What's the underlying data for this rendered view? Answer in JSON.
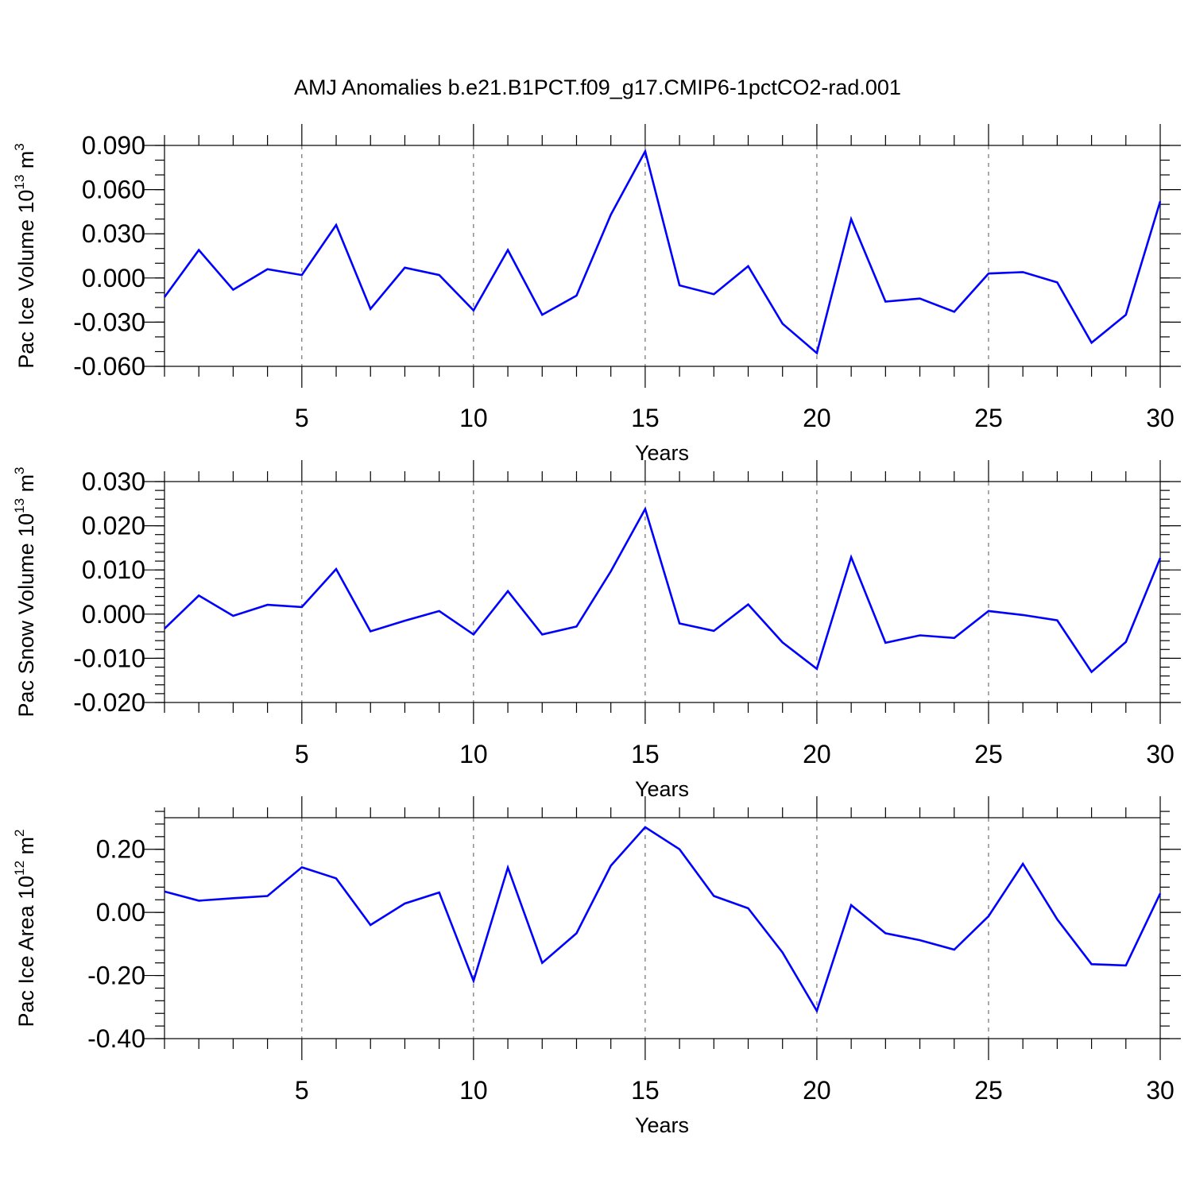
{
  "title": "AMJ Anomalies b.e21.B1PCT.f09_g17.CMIP6-1pctCO2-rad.001",
  "colors": {
    "line": "#0000ff",
    "axis": "#000000",
    "grid": "#555555"
  },
  "chart_data": [
    {
      "type": "line",
      "ylabel": {
        "base": "Pac Ice Volume 10",
        "sup": "13",
        "unit": " m",
        "unit_sup": "3"
      },
      "xlabel": "Years",
      "xlim": [
        1,
        30
      ],
      "ylim": [
        -0.06,
        0.09
      ],
      "x_ticks": [
        5,
        10,
        15,
        20,
        25,
        30
      ],
      "x_tick_labels": [
        "5",
        "10",
        "15",
        "20",
        "25",
        "30"
      ],
      "y_ticks": [
        -0.06,
        -0.03,
        0.0,
        0.03,
        0.06,
        0.09
      ],
      "y_tick_labels": [
        "-0.060",
        "-0.030",
        "0.000",
        "0.030",
        "0.060",
        "0.090"
      ],
      "y_minor_step": 0.01,
      "grid": "vertical dashed at major x ticks",
      "x": [
        1,
        2,
        3,
        4,
        5,
        6,
        7,
        8,
        9,
        10,
        11,
        12,
        13,
        14,
        15,
        16,
        17,
        18,
        19,
        20,
        21,
        22,
        23,
        24,
        25,
        26,
        27,
        28,
        29,
        30
      ],
      "series": [
        {
          "values": [
            -0.013,
            0.019,
            -0.008,
            0.006,
            0.002,
            0.036,
            -0.021,
            0.007,
            0.002,
            -0.022,
            0.019,
            -0.025,
            -0.012,
            0.043,
            0.086,
            -0.005,
            -0.011,
            0.008,
            -0.031,
            -0.051,
            0.04,
            -0.016,
            -0.014,
            -0.023,
            0.003,
            0.004,
            -0.003,
            -0.044,
            -0.025,
            0.052
          ]
        }
      ]
    },
    {
      "type": "line",
      "ylabel": {
        "base": "Pac Snow Volume 10",
        "sup": "13",
        "unit": " m",
        "unit_sup": "3"
      },
      "xlabel": "Years",
      "xlim": [
        1,
        30
      ],
      "ylim": [
        -0.02,
        0.03
      ],
      "x_ticks": [
        5,
        10,
        15,
        20,
        25,
        30
      ],
      "x_tick_labels": [
        "5",
        "10",
        "15",
        "20",
        "25",
        "30"
      ],
      "y_ticks": [
        -0.02,
        -0.01,
        0.0,
        0.01,
        0.02,
        0.03
      ],
      "y_tick_labels": [
        "-0.020",
        "-0.010",
        "0.000",
        "0.010",
        "0.020",
        "0.030"
      ],
      "y_minor_step": 0.002,
      "grid": "vertical dashed at major x ticks",
      "x": [
        1,
        2,
        3,
        4,
        5,
        6,
        7,
        8,
        9,
        10,
        11,
        12,
        13,
        14,
        15,
        16,
        17,
        18,
        19,
        20,
        21,
        22,
        23,
        24,
        25,
        26,
        27,
        28,
        29,
        30
      ],
      "series": [
        {
          "values": [
            -0.0033,
            0.0042,
            -0.0004,
            0.0021,
            0.0016,
            0.0102,
            -0.0039,
            -0.0015,
            0.0007,
            -0.0046,
            0.0052,
            -0.0046,
            -0.0028,
            0.0097,
            0.0238,
            -0.0021,
            -0.0038,
            0.0022,
            -0.0064,
            -0.0124,
            0.0129,
            -0.0065,
            -0.0048,
            -0.0054,
            0.0007,
            -0.0002,
            -0.0014,
            -0.0131,
            -0.0063,
            0.0127
          ]
        }
      ]
    },
    {
      "type": "line",
      "ylabel": {
        "base": "Pac Ice Area 10",
        "sup": "12",
        "unit": " m",
        "unit_sup": "2"
      },
      "xlabel": "Years",
      "xlim": [
        1,
        30
      ],
      "ylim": [
        -0.4,
        0.3
      ],
      "x_ticks": [
        5,
        10,
        15,
        20,
        25,
        30
      ],
      "x_tick_labels": [
        "5",
        "10",
        "15",
        "20",
        "25",
        "30"
      ],
      "y_ticks": [
        -0.4,
        -0.2,
        0.0,
        0.2
      ],
      "y_tick_labels": [
        "-0.40",
        "-0.20",
        "0.00",
        "0.20"
      ],
      "y_minor_step": 0.04,
      "grid": "vertical dashed at major x ticks",
      "x": [
        1,
        2,
        3,
        4,
        5,
        6,
        7,
        8,
        9,
        10,
        11,
        12,
        13,
        14,
        15,
        16,
        17,
        18,
        19,
        20,
        21,
        22,
        23,
        24,
        25,
        26,
        27,
        28,
        29,
        30
      ],
      "series": [
        {
          "values": [
            0.066,
            0.037,
            0.045,
            0.052,
            0.143,
            0.108,
            -0.04,
            0.028,
            0.063,
            -0.217,
            0.142,
            -0.16,
            -0.066,
            0.148,
            0.27,
            0.2,
            0.052,
            0.013,
            -0.127,
            -0.312,
            0.023,
            -0.066,
            -0.088,
            -0.118,
            -0.012,
            0.154,
            -0.022,
            -0.164,
            -0.168,
            0.06
          ]
        }
      ]
    }
  ]
}
